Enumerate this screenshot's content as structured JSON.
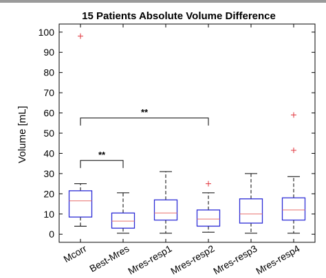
{
  "chart_data": {
    "type": "boxplot",
    "title": "15 Patients Absolute Volume Difference",
    "xlabel": "",
    "ylabel": "Volume [mL]",
    "ylim": [
      -4,
      104
    ],
    "yticks": [
      0,
      10,
      20,
      30,
      40,
      50,
      60,
      70,
      80,
      90,
      100
    ],
    "grid": false,
    "categories": [
      "Mcorr",
      "Best-Mres",
      "Mres-resp1",
      "Mres-resp2",
      "Mres-resp3",
      "Mres-resp4"
    ],
    "boxes": [
      {
        "q1": 8.5,
        "median": 16.5,
        "q3": 21.5,
        "whisker_low": 4,
        "whisker_high": 25,
        "outliers": [
          98
        ]
      },
      {
        "q1": 3,
        "median": 6.5,
        "q3": 10.5,
        "whisker_low": 0.5,
        "whisker_high": 20.5,
        "outliers": []
      },
      {
        "q1": 7,
        "median": 10.5,
        "q3": 17,
        "whisker_low": 0.5,
        "whisker_high": 31,
        "outliers": []
      },
      {
        "q1": 4,
        "median": 7.5,
        "q3": 12,
        "whisker_low": 1,
        "whisker_high": 20.5,
        "outliers": [
          25
        ]
      },
      {
        "q1": 5.5,
        "median": 10,
        "q3": 17.5,
        "whisker_low": 0.5,
        "whisker_high": 30,
        "outliers": []
      },
      {
        "q1": 7,
        "median": 12,
        "q3": 18,
        "whisker_low": 0.5,
        "whisker_high": 28.5,
        "outliers": [
          41.5,
          59
        ]
      }
    ],
    "significance": [
      {
        "from": 0,
        "to": 1,
        "y": 36.5,
        "label": "**"
      },
      {
        "from": 0,
        "to": 3,
        "y": 57.5,
        "label": "**"
      }
    ],
    "colors": {
      "box": "#2b2bd6",
      "median": "#e8706e",
      "outlier": "#e0323a",
      "whisker": "#000000"
    }
  }
}
